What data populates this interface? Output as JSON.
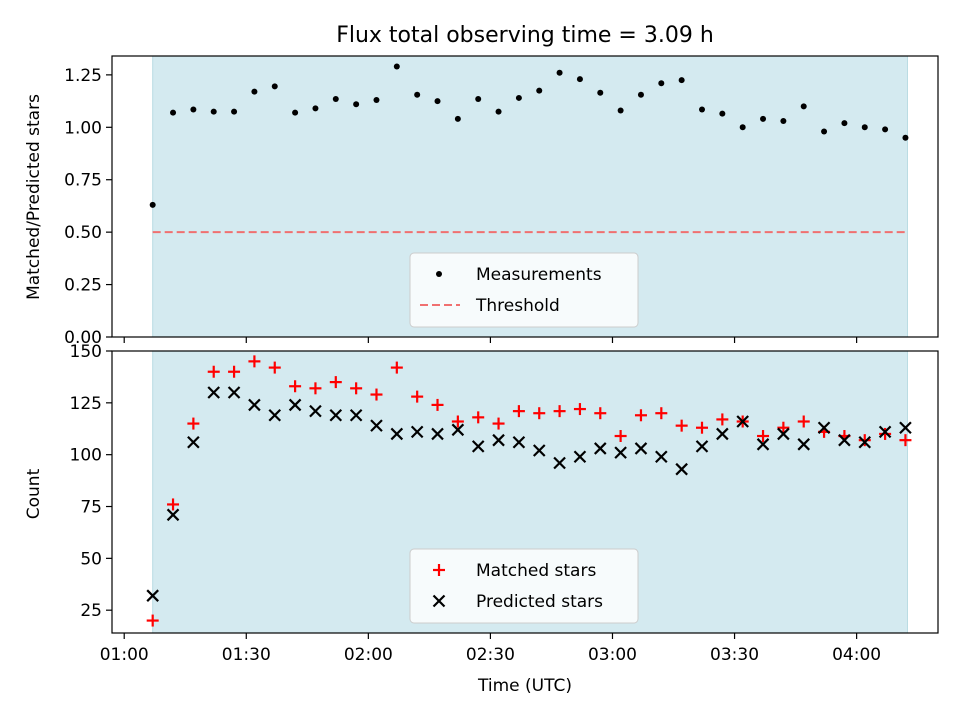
{
  "chart_data": {
    "title": "Flux total observing time = 3.09 h",
    "xlabel": "Time (UTC)",
    "x_tick_labels": [
      "01:00",
      "01:30",
      "02:00",
      "02:30",
      "03:00",
      "03:30",
      "04:00"
    ],
    "x_tick_minutes": [
      60,
      90,
      120,
      150,
      180,
      210,
      240
    ],
    "x_range_minutes": [
      57.0,
      260.0
    ],
    "shaded_span_minutes": [
      67.0,
      252.5
    ],
    "shade_color": "#d4eaf0",
    "panels": [
      {
        "type": "scatter",
        "ylabel": "Matched/Predicted stars",
        "ylim": [
          0.0,
          1.34
        ],
        "y_ticks": [
          0.0,
          0.25,
          0.5,
          0.75,
          1.0,
          1.25
        ],
        "y_tick_labels": [
          "0.00",
          "0.25",
          "0.50",
          "0.75",
          "1.00",
          "1.25"
        ],
        "legend_position": "lower-center",
        "threshold": {
          "name": "Threshold",
          "value": 0.5,
          "color": "#f07070",
          "style": "dashed"
        },
        "series": [
          {
            "name": "Measurements",
            "marker": "dot",
            "color": "#000000",
            "x": [
              67.0,
              72.0,
              77.0,
              82.0,
              87.0,
              92.0,
              97.0,
              102.0,
              107.0,
              112.0,
              117.0,
              122.0,
              127.0,
              132.0,
              137.0,
              142.0,
              147.0,
              152.0,
              157.0,
              162.0,
              167.0,
              172.0,
              177.0,
              182.0,
              187.0,
              192.0,
              197.0,
              202.0,
              207.0,
              212.0,
              217.0,
              222.0,
              227.0,
              232.0,
              237.0,
              242.0,
              247.0,
              252.0
            ],
            "y": [
              0.63,
              1.07,
              1.085,
              1.075,
              1.075,
              1.17,
              1.195,
              1.07,
              1.09,
              1.135,
              1.11,
              1.13,
              1.29,
              1.155,
              1.125,
              1.04,
              1.135,
              1.075,
              1.14,
              1.175,
              1.26,
              1.23,
              1.165,
              1.08,
              1.155,
              1.21,
              1.225,
              1.085,
              1.065,
              1.0,
              1.04,
              1.03,
              1.1,
              0.98,
              1.02,
              1.0,
              0.99,
              0.95
            ]
          }
        ]
      },
      {
        "type": "scatter",
        "ylabel": "Count",
        "ylim": [
          14.0,
          150.0
        ],
        "y_ticks": [
          25,
          50,
          75,
          100,
          125,
          150
        ],
        "y_tick_labels": [
          "25",
          "50",
          "75",
          "100",
          "125",
          "150"
        ],
        "legend_position": "lower-center",
        "series": [
          {
            "name": "Matched stars",
            "marker": "plus",
            "color": "#ff0000",
            "x": [
              67.0,
              72.0,
              77.0,
              82.0,
              87.0,
              92.0,
              97.0,
              102.0,
              107.0,
              112.0,
              117.0,
              122.0,
              127.0,
              132.0,
              137.0,
              142.0,
              147.0,
              152.0,
              157.0,
              162.0,
              167.0,
              172.0,
              177.0,
              182.0,
              187.0,
              192.0,
              197.0,
              202.0,
              207.0,
              212.0,
              217.0,
              222.0,
              227.0,
              232.0,
              237.0,
              242.0,
              247.0,
              252.0
            ],
            "y": [
              20,
              76,
              115,
              140,
              140,
              145,
              142,
              133,
              132,
              135,
              132,
              129,
              142,
              128,
              124,
              116,
              118,
              115,
              121,
              120,
              121,
              122,
              120,
              109,
              119,
              120,
              114,
              113,
              117,
              116,
              109,
              113,
              116,
              111,
              109,
              107,
              110,
              107
            ]
          },
          {
            "name": "Predicted stars",
            "marker": "x",
            "color": "#000000",
            "x": [
              67.0,
              72.0,
              77.0,
              82.0,
              87.0,
              92.0,
              97.0,
              102.0,
              107.0,
              112.0,
              117.0,
              122.0,
              127.0,
              132.0,
              137.0,
              142.0,
              147.0,
              152.0,
              157.0,
              162.0,
              167.0,
              172.0,
              177.0,
              182.0,
              187.0,
              192.0,
              197.0,
              202.0,
              207.0,
              212.0,
              217.0,
              222.0,
              227.0,
              232.0,
              237.0,
              242.0,
              247.0,
              252.0
            ],
            "y": [
              32,
              71,
              106,
              130,
              130,
              124,
              119,
              124,
              121,
              119,
              119,
              114,
              110,
              111,
              110,
              112,
              104,
              107,
              106,
              102,
              96,
              99,
              103,
              101,
              103,
              99,
              93,
              104,
              110,
              116,
              105,
              110,
              105,
              113,
              107,
              106,
              111,
              113
            ]
          }
        ]
      }
    ]
  }
}
